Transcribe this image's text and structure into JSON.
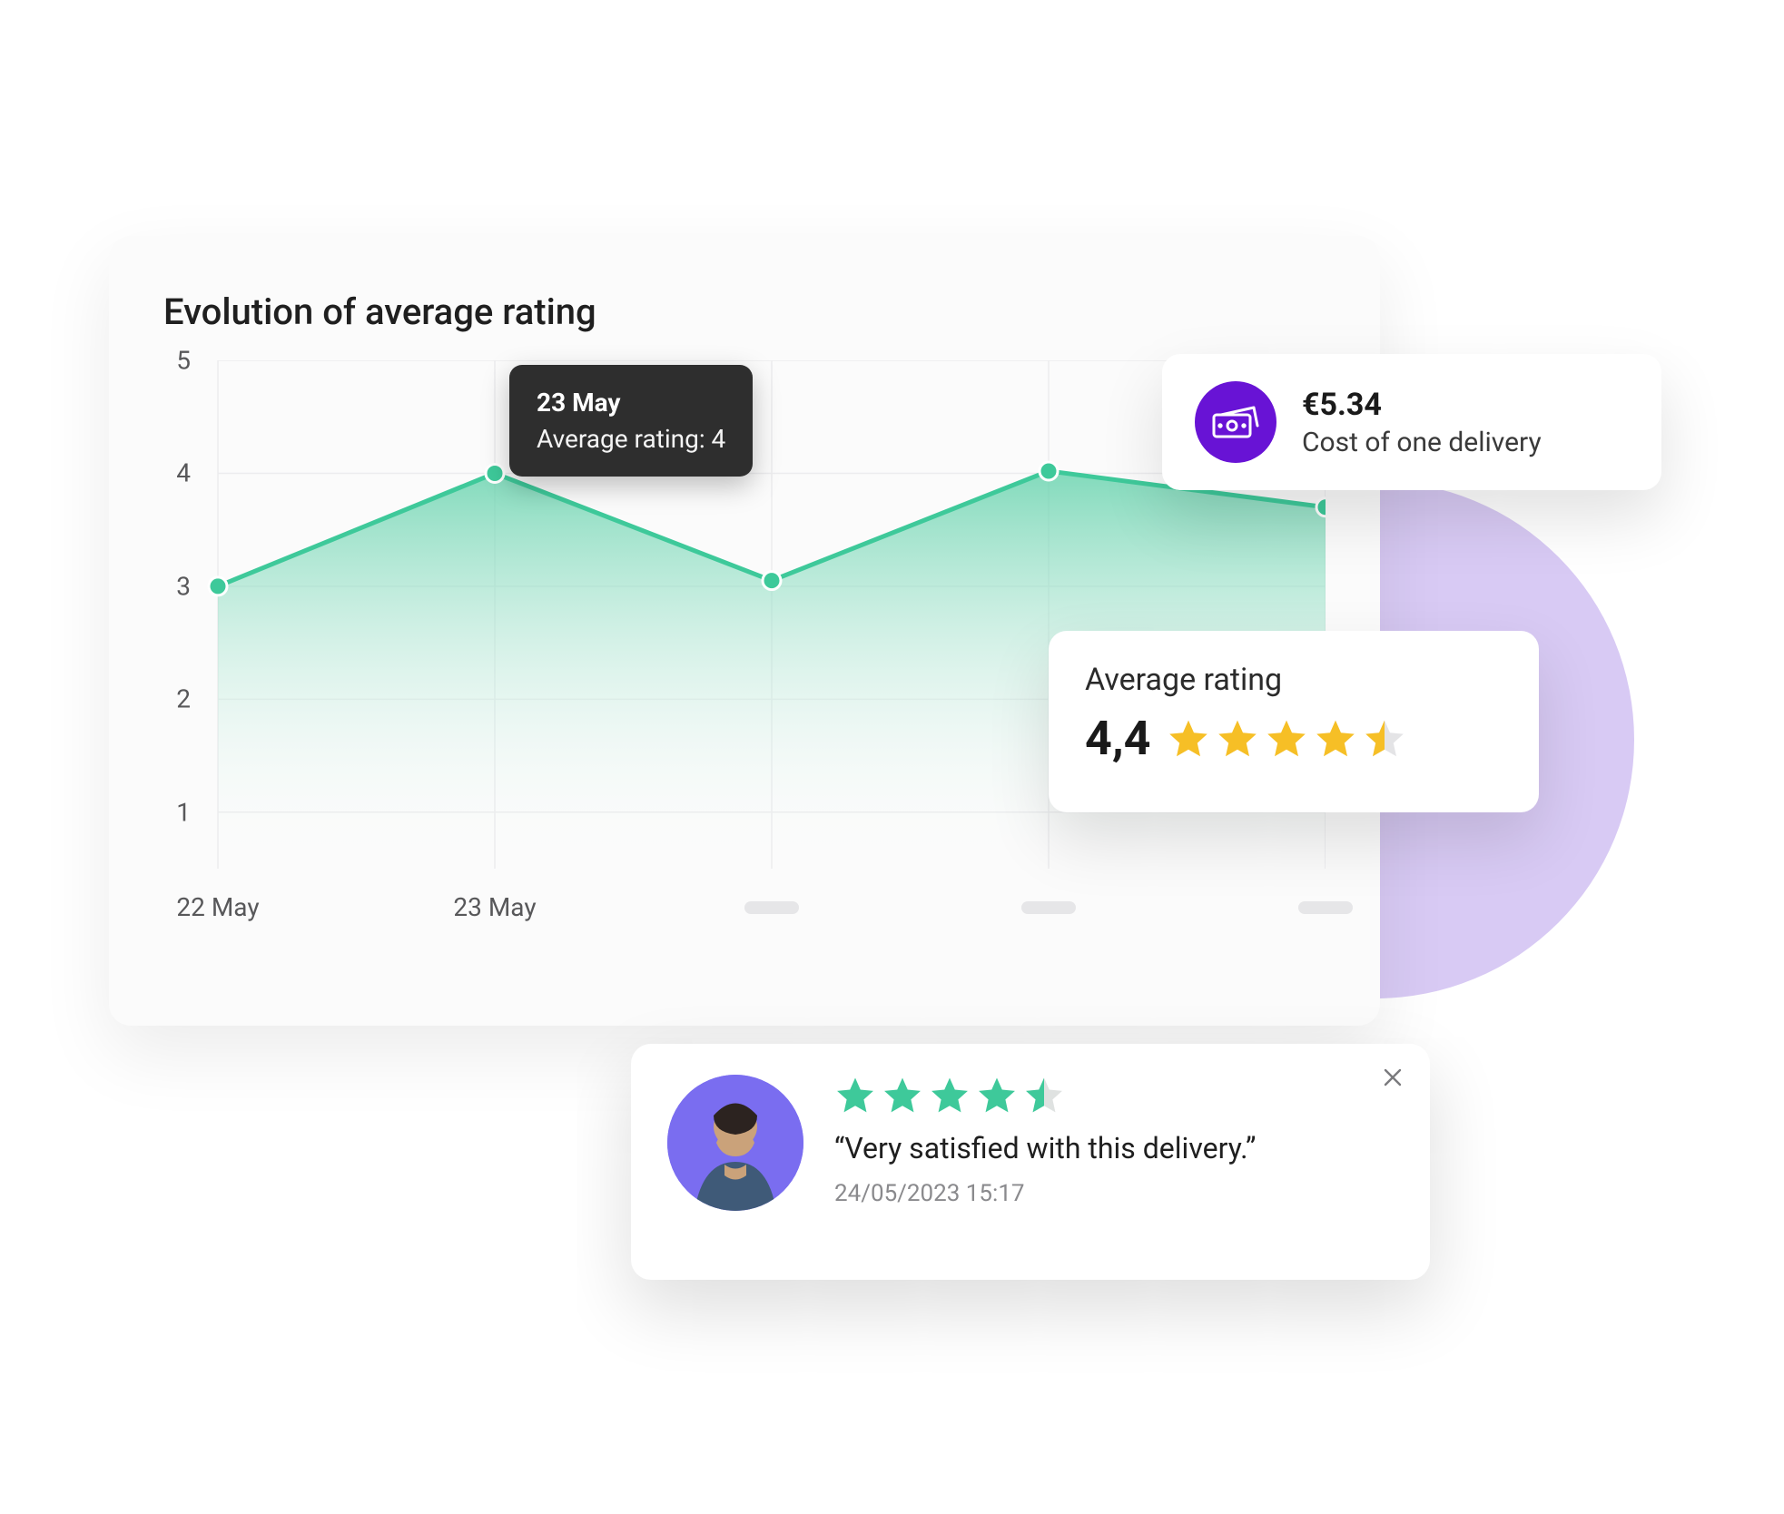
{
  "bg_circle_color": "#d8caf4",
  "chart": {
    "title": "Evolution of average rating",
    "type": "area-line",
    "x_labels": [
      "22 May",
      "23 May",
      "",
      "",
      ""
    ],
    "x_placeholder_indices": [
      2,
      3,
      4
    ],
    "y_ticks": [
      1,
      2,
      3,
      4,
      5
    ],
    "ylim": [
      0.5,
      5
    ],
    "values": [
      3,
      4,
      3.05,
      4.02,
      3.7
    ],
    "line_color": "#3ec99a",
    "fill_gradient_top": "#59cfa6",
    "fill_gradient_bottom": "#ffffff",
    "fill_opacity_top": 0.75,
    "point_fill": "#3ec99a",
    "point_stroke": "#ffffff",
    "point_radius": 10,
    "line_width": 5,
    "grid_color": "#ececee",
    "background": "#fbfbfb",
    "tick_fontsize": 28,
    "tick_color": "#58585a",
    "x_pill_color": "#e6e6e8"
  },
  "tooltip": {
    "date": "23 May",
    "value_label": "Average rating: 4",
    "bg": "#2e2e2e",
    "text_color": "#ffffff"
  },
  "cost_card": {
    "value": "€5.34",
    "label": "Cost of one delivery",
    "icon_bg": "#6813d5",
    "icon_name": "cash-icon"
  },
  "rating_card": {
    "title": "Average rating",
    "value": "4,4",
    "stars": 4.5,
    "star_fill": "#f6bf26",
    "star_empty": "#e4e4e6"
  },
  "review_card": {
    "stars": 4.5,
    "star_fill": "#3ec99a",
    "star_empty": "#dfe2e1",
    "text": "“Very satisfied with this delivery.”",
    "date": "24/05/2023 15:17",
    "avatar_bg": "#7a6df0"
  }
}
